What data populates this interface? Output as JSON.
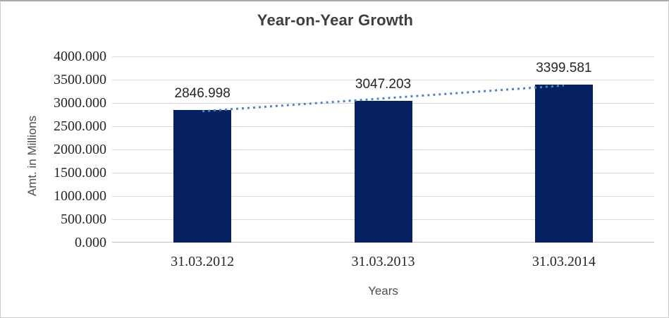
{
  "chart_data": {
    "type": "bar",
    "title": "Year-on-Year Growth",
    "xlabel": "Years",
    "ylabel": "Amt. in Millions",
    "categories": [
      "31.03.2012",
      "31.03.2013",
      "31.03.2014"
    ],
    "values": [
      2846.998,
      3047.203,
      3399.581
    ],
    "data_labels": [
      "2846.998",
      "3047.203",
      "3399.581"
    ],
    "y_ticks": [
      "0.000",
      "500.000",
      "1000.000",
      "1500.000",
      "2000.000",
      "2500.000",
      "3000.000",
      "3500.000",
      "4000.000"
    ],
    "ylim": [
      0,
      4000
    ],
    "grid": true,
    "legend": "none",
    "trendline": {
      "type": "linear",
      "style": "dotted"
    },
    "colors": {
      "bar": "#062160",
      "trendline": "#4a86c8",
      "gridline": "#d9d9d9",
      "axis_line": "#bfbfbf",
      "title_text": "#3f3f3f",
      "tick_text": "#262626",
      "data_label_text": "#262626",
      "axis_title_text": "#4d4d4d"
    }
  }
}
